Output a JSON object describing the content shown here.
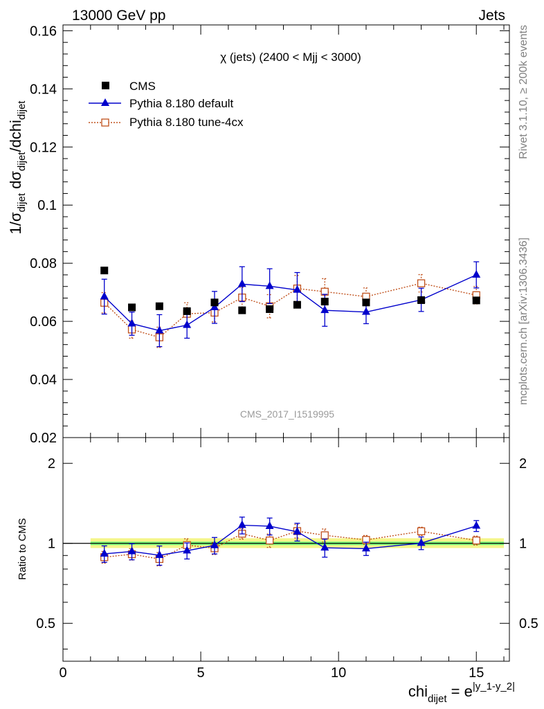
{
  "header": {
    "left": "13000 GeV pp",
    "right": "Jets"
  },
  "side_labels": {
    "rivet": "Rivet 3.1.10, ≥ 200k events",
    "mcplots": "mcplots.cern.ch [arXiv:1306.3436]"
  },
  "colors": {
    "cms": "#000000",
    "default": "#0000cc",
    "tune": "#c0501b",
    "band_inner": "#7cfc7c",
    "band_outer": "#f5f58a"
  },
  "chart_data": [
    {
      "type": "scatter",
      "panel": "main",
      "title": "χ (jets) (2400 < Mjj < 3000)",
      "watermark": "CMS_2017_I1519995",
      "ylabel": {
        "a": "1/σ",
        "b": "dijet",
        "c": " dσ",
        "d": "dijet",
        "e": "/dchi",
        "f": "dijet"
      },
      "ylim": [
        0.02,
        0.162
      ],
      "xlim": [
        0,
        16.2
      ],
      "yticks": [
        {
          "v": 0.02,
          "label": "0.02"
        },
        {
          "v": 0.04,
          "label": "0.04"
        },
        {
          "v": 0.06,
          "label": "0.06"
        },
        {
          "v": 0.08,
          "label": "0.08"
        },
        {
          "v": 0.1,
          "label": "0.1"
        },
        {
          "v": 0.12,
          "label": "0.12"
        },
        {
          "v": 0.14,
          "label": "0.14"
        },
        {
          "v": 0.16,
          "label": "0.16"
        }
      ],
      "legend": [
        {
          "key": "cms",
          "label": "CMS"
        },
        {
          "key": "default",
          "label": "Pythia 8.180 default"
        },
        {
          "key": "tune",
          "label": "Pythia 8.180 tune-4cx"
        }
      ],
      "series": [
        {
          "key": "cms",
          "name": "CMS",
          "x": [
            1.5,
            2.5,
            3.5,
            4.5,
            5.5,
            6.5,
            7.5,
            8.5,
            9.5,
            11,
            13,
            15
          ],
          "y": [
            0.0775,
            0.0648,
            0.0652,
            0.0635,
            0.0665,
            0.0638,
            0.0642,
            0.0657,
            0.0668,
            0.0665,
            0.0673,
            0.0672
          ]
        },
        {
          "key": "default",
          "name": "Pythia 8.180 default",
          "x": [
            1.5,
            2.5,
            3.5,
            4.5,
            5.5,
            6.5,
            7.5,
            8.5,
            9.5,
            11,
            13,
            15
          ],
          "y": [
            0.0685,
            0.0592,
            0.0568,
            0.0587,
            0.0648,
            0.0728,
            0.0721,
            0.0708,
            0.0638,
            0.0632,
            0.0674,
            0.076
          ],
          "err": [
            0.006,
            0.004,
            0.0055,
            0.0045,
            0.0055,
            0.006,
            0.006,
            0.006,
            0.0055,
            0.004,
            0.004,
            0.0045
          ]
        },
        {
          "key": "tune",
          "name": "Pythia 8.180 tune-4cx",
          "x": [
            1.5,
            2.5,
            3.5,
            4.5,
            5.5,
            6.5,
            7.5,
            8.5,
            9.5,
            11,
            13,
            15
          ],
          "y": [
            0.0664,
            0.0572,
            0.0545,
            0.0626,
            0.063,
            0.0682,
            0.0652,
            0.0713,
            0.0702,
            0.0685,
            0.0731,
            0.069
          ],
          "err": [
            0.0035,
            0.003,
            0.0035,
            0.0038,
            0.0032,
            0.0035,
            0.004,
            0.0045,
            0.0045,
            0.003,
            0.003,
            0.003
          ]
        }
      ]
    },
    {
      "type": "scatter",
      "panel": "ratio",
      "ylabel": "Ratio to CMS",
      "xlabel": {
        "a": "chi",
        "b": "dijet",
        "c": " = e",
        "d": "|y_1-y_2|"
      },
      "ylim": [
        0.36,
        2.5
      ],
      "xlim": [
        0,
        16.2
      ],
      "yticks": [
        {
          "v": 0.5,
          "label": "0.5"
        },
        {
          "v": 1,
          "label": "1"
        },
        {
          "v": 2,
          "label": "2"
        }
      ],
      "xticks": [
        {
          "v": 0,
          "label": "0"
        },
        {
          "v": 5,
          "label": "5"
        },
        {
          "v": 10,
          "label": "10"
        },
        {
          "v": 15,
          "label": "15"
        }
      ],
      "band": {
        "x": [
          1,
          16
        ],
        "inner": [
          0.985,
          1.015
        ],
        "outer": [
          0.96,
          1.045
        ]
      },
      "series": [
        {
          "key": "default",
          "name": "Pythia 8.180 default",
          "x": [
            1.5,
            2.5,
            3.5,
            4.5,
            5.5,
            6.5,
            7.5,
            8.5,
            9.5,
            11,
            13,
            15
          ],
          "y": [
            0.913,
            0.932,
            0.902,
            0.938,
            0.982,
            1.17,
            1.16,
            1.105,
            0.962,
            0.955,
            1.002,
            1.163
          ],
          "err": [
            0.065,
            0.065,
            0.075,
            0.065,
            0.07,
            0.085,
            0.085,
            0.085,
            0.075,
            0.055,
            0.055,
            0.055
          ]
        },
        {
          "key": "tune",
          "name": "Pythia 8.180 tune-4cx",
          "x": [
            1.5,
            2.5,
            3.5,
            4.5,
            5.5,
            6.5,
            7.5,
            8.5,
            9.5,
            11,
            13,
            15
          ],
          "y": [
            0.887,
            0.91,
            0.873,
            0.985,
            0.958,
            1.087,
            1.025,
            1.112,
            1.072,
            1.03,
            1.11,
            1.025
          ],
          "err": [
            0.045,
            0.045,
            0.05,
            0.055,
            0.05,
            0.05,
            0.06,
            0.065,
            0.06,
            0.04,
            0.04,
            0.04
          ]
        }
      ]
    }
  ]
}
